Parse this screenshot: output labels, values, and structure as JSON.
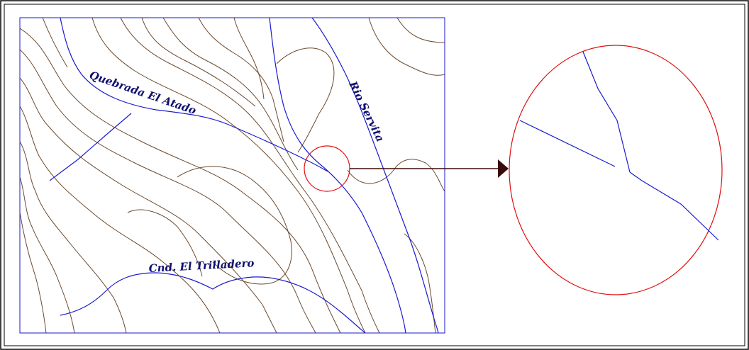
{
  "map": {
    "labels": [
      "Quebrada El Atado",
      "Rio Servita",
      "Cnd. El Trilladero"
    ]
  }
}
